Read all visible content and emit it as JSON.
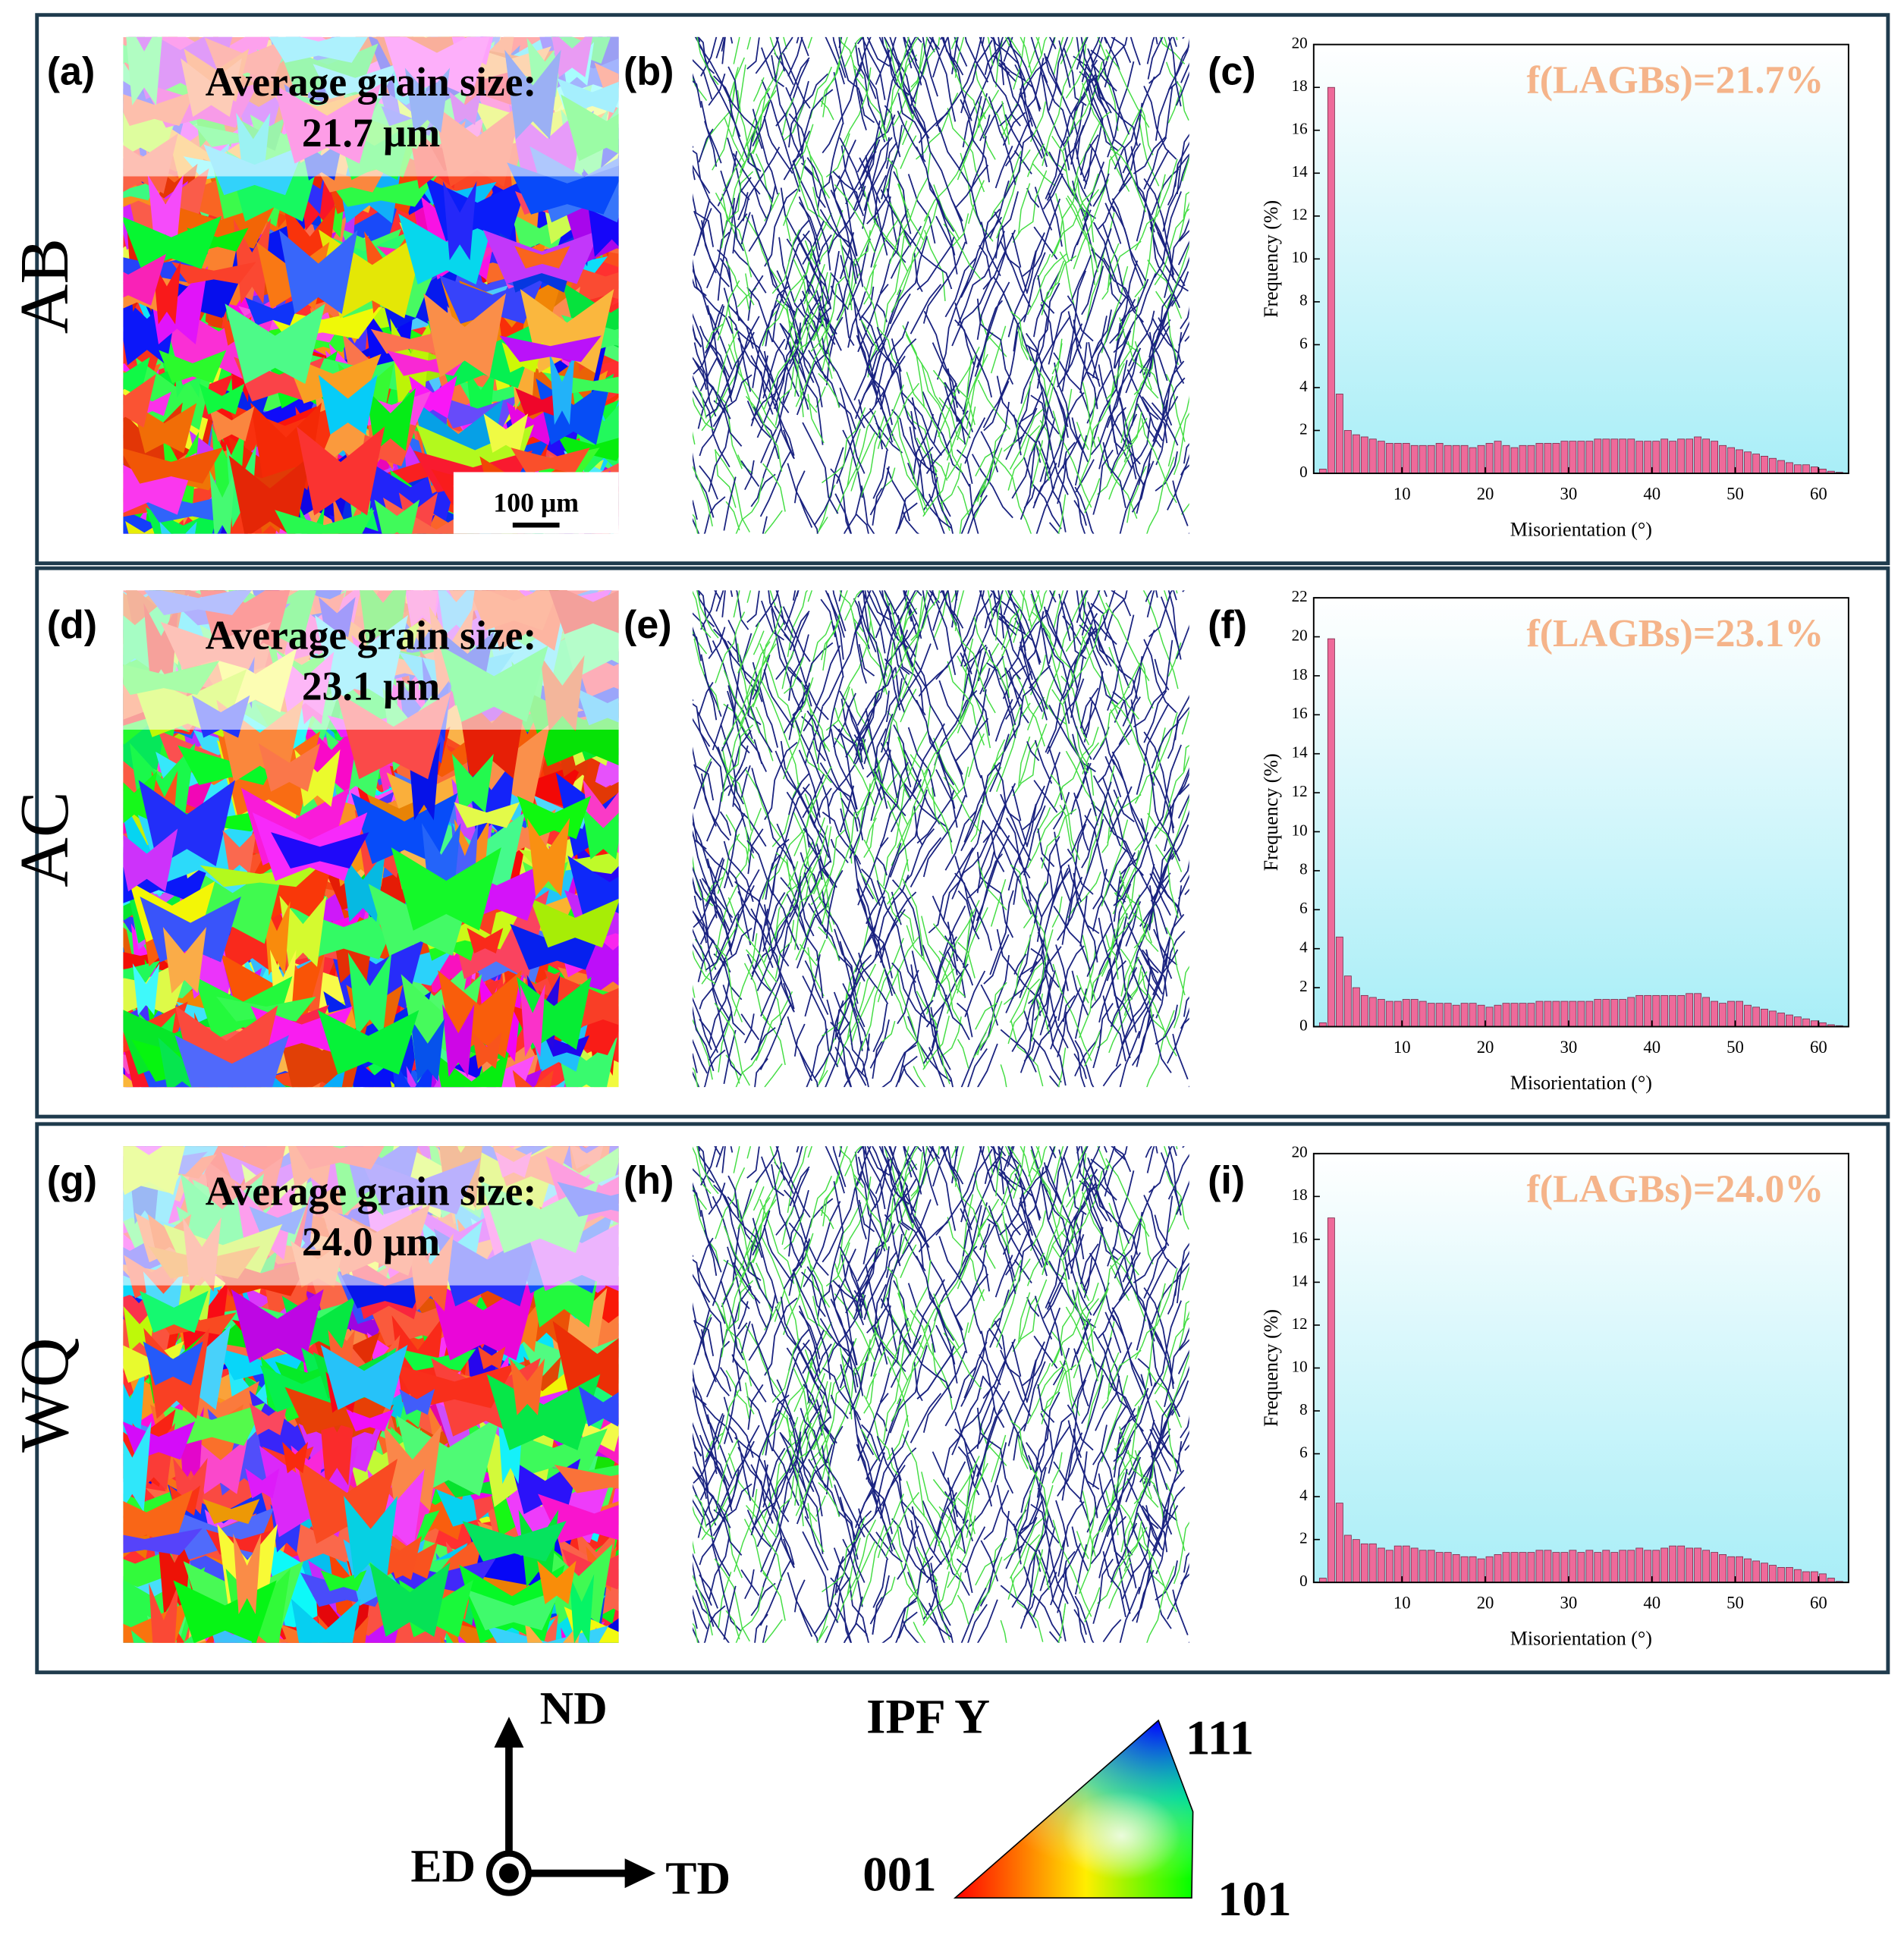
{
  "panels": [
    {
      "row_label": "AB",
      "map_label": "(a)",
      "grain_label": "Average grain size:",
      "grain_value": "21.7 μm",
      "boundary_label": "(b)",
      "hist_label": "(c)"
    },
    {
      "row_label": "AC",
      "map_label": "(d)",
      "grain_label": "Average grain size:",
      "grain_value": "23.1 μm",
      "boundary_label": "(e)",
      "hist_label": "(f)"
    },
    {
      "row_label": "WQ",
      "map_label": "(g)",
      "grain_label": "Average grain size:",
      "grain_value": "24.0 μm",
      "boundary_label": "(h)",
      "hist_label": "(i)"
    }
  ],
  "scale_bar": "100 μm",
  "chart_data": [
    {
      "type": "histogram",
      "annotation": "f(LAGBs)=21.7%",
      "x_label": "Misorientation (°)",
      "y_label": "Frequency (%)",
      "color": "#ee6a9a",
      "bins": [
        0,
        1,
        2,
        3,
        4,
        5,
        6,
        7,
        8,
        9,
        10,
        11,
        12,
        13,
        14,
        15,
        16,
        17,
        18,
        19,
        20,
        21,
        22,
        23,
        24,
        25,
        26,
        27,
        28,
        29,
        30,
        31,
        32,
        33,
        34,
        35,
        36,
        37,
        38,
        39,
        40,
        41,
        42,
        43,
        44,
        45,
        46,
        47,
        48,
        49,
        50,
        51,
        52,
        53,
        54,
        55,
        56,
        57,
        58,
        59,
        60,
        61,
        62,
        63
      ],
      "values": [
        0.2,
        18.0,
        3.7,
        2.0,
        1.8,
        1.7,
        1.6,
        1.5,
        1.4,
        1.4,
        1.4,
        1.3,
        1.3,
        1.3,
        1.4,
        1.3,
        1.3,
        1.3,
        1.2,
        1.3,
        1.4,
        1.5,
        1.3,
        1.2,
        1.3,
        1.3,
        1.4,
        1.4,
        1.4,
        1.5,
        1.5,
        1.5,
        1.5,
        1.6,
        1.6,
        1.6,
        1.6,
        1.6,
        1.5,
        1.5,
        1.5,
        1.6,
        1.5,
        1.6,
        1.6,
        1.7,
        1.6,
        1.5,
        1.3,
        1.2,
        1.1,
        1.0,
        0.9,
        0.8,
        0.7,
        0.6,
        0.5,
        0.4,
        0.4,
        0.3,
        0.2,
        0.1,
        0.05
      ],
      "xlim": [
        -0.6,
        63.6
      ],
      "ylim": [
        0,
        20
      ],
      "xticks": [
        10,
        20,
        30,
        40,
        50,
        60
      ],
      "yticks": [
        0,
        2,
        4,
        6,
        8,
        10,
        12,
        14,
        16,
        18,
        20
      ]
    },
    {
      "type": "histogram",
      "annotation": "f(LAGBs)=23.1%",
      "x_label": "Misorientation (°)",
      "y_label": "Frequency (%)",
      "color": "#ee6a9a",
      "bins": [
        0,
        1,
        2,
        3,
        4,
        5,
        6,
        7,
        8,
        9,
        10,
        11,
        12,
        13,
        14,
        15,
        16,
        17,
        18,
        19,
        20,
        21,
        22,
        23,
        24,
        25,
        26,
        27,
        28,
        29,
        30,
        31,
        32,
        33,
        34,
        35,
        36,
        37,
        38,
        39,
        40,
        41,
        42,
        43,
        44,
        45,
        46,
        47,
        48,
        49,
        50,
        51,
        52,
        53,
        54,
        55,
        56,
        57,
        58,
        59,
        60,
        61,
        62,
        63
      ],
      "values": [
        0.2,
        19.9,
        4.6,
        2.6,
        2.0,
        1.6,
        1.5,
        1.4,
        1.3,
        1.3,
        1.4,
        1.4,
        1.3,
        1.2,
        1.2,
        1.2,
        1.1,
        1.2,
        1.2,
        1.1,
        1.0,
        1.1,
        1.2,
        1.2,
        1.2,
        1.2,
        1.3,
        1.3,
        1.3,
        1.3,
        1.3,
        1.3,
        1.3,
        1.4,
        1.4,
        1.4,
        1.4,
        1.5,
        1.6,
        1.6,
        1.6,
        1.6,
        1.6,
        1.6,
        1.7,
        1.7,
        1.5,
        1.3,
        1.2,
        1.3,
        1.3,
        1.1,
        1.0,
        0.9,
        0.8,
        0.7,
        0.6,
        0.5,
        0.4,
        0.3,
        0.2,
        0.1,
        0.05
      ],
      "xlim": [
        -0.6,
        63.6
      ],
      "ylim": [
        0,
        22
      ],
      "xticks": [
        10,
        20,
        30,
        40,
        50,
        60
      ],
      "yticks": [
        0,
        2,
        4,
        6,
        8,
        10,
        12,
        14,
        16,
        18,
        20,
        22
      ]
    },
    {
      "type": "histogram",
      "annotation": "f(LAGBs)=24.0%",
      "x_label": "Misorientation (°)",
      "y_label": "Frequency (%)",
      "color": "#ee6a9a",
      "bins": [
        0,
        1,
        2,
        3,
        4,
        5,
        6,
        7,
        8,
        9,
        10,
        11,
        12,
        13,
        14,
        15,
        16,
        17,
        18,
        19,
        20,
        21,
        22,
        23,
        24,
        25,
        26,
        27,
        28,
        29,
        30,
        31,
        32,
        33,
        34,
        35,
        36,
        37,
        38,
        39,
        40,
        41,
        42,
        43,
        44,
        45,
        46,
        47,
        48,
        49,
        50,
        51,
        52,
        53,
        54,
        55,
        56,
        57,
        58,
        59,
        60,
        61,
        62,
        63
      ],
      "values": [
        0.2,
        17.0,
        3.7,
        2.2,
        2.0,
        1.8,
        1.8,
        1.6,
        1.5,
        1.7,
        1.7,
        1.6,
        1.5,
        1.5,
        1.4,
        1.4,
        1.3,
        1.2,
        1.2,
        1.1,
        1.2,
        1.3,
        1.4,
        1.4,
        1.4,
        1.4,
        1.5,
        1.5,
        1.4,
        1.4,
        1.5,
        1.4,
        1.5,
        1.4,
        1.5,
        1.4,
        1.5,
        1.5,
        1.6,
        1.5,
        1.5,
        1.6,
        1.7,
        1.7,
        1.6,
        1.6,
        1.5,
        1.4,
        1.3,
        1.2,
        1.2,
        1.1,
        1.0,
        0.9,
        0.8,
        0.7,
        0.7,
        0.6,
        0.5,
        0.5,
        0.4,
        0.2,
        0.05
      ],
      "xlim": [
        -0.6,
        63.6
      ],
      "ylim": [
        0,
        20
      ],
      "xticks": [
        10,
        20,
        30,
        40,
        50,
        60
      ],
      "yticks": [
        0,
        2,
        4,
        6,
        8,
        10,
        12,
        14,
        16,
        18,
        20
      ]
    }
  ],
  "legend": {
    "nd": "ND",
    "td": "TD",
    "ed": "ED",
    "ipf_title": "IPF Y",
    "corner_001": "001",
    "corner_101": "101",
    "corner_111": "111"
  }
}
